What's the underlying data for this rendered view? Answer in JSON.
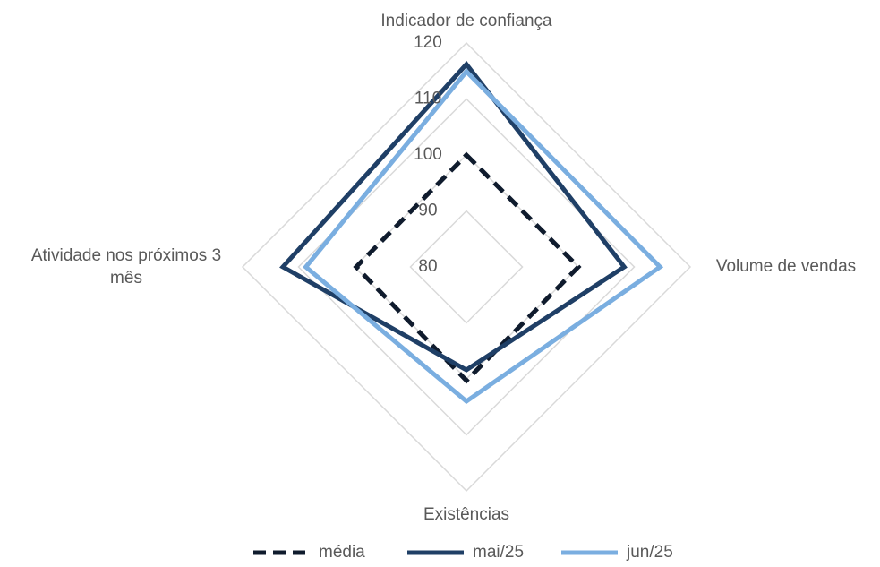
{
  "chart_data": {
    "type": "radar",
    "categories": [
      "Indicador de confiança",
      "Volume de vendas",
      "Existências",
      "Atividade nos próximos 3 mês"
    ],
    "rlim": [
      80,
      120
    ],
    "rticks": [
      80,
      90,
      100,
      110,
      120
    ],
    "grid": true,
    "series": [
      {
        "name": "média",
        "color": "#0f1b2d",
        "dashed": true,
        "values": [
          100,
          100,
          100.3,
          99.7
        ]
      },
      {
        "name": "mai/25",
        "color": "#1f3f66",
        "dashed": false,
        "values": [
          116.2,
          108.2,
          98.4,
          112.8
        ]
      },
      {
        "name": "jun/25",
        "color": "#7aaee0",
        "dashed": false,
        "values": [
          114.9,
          114.6,
          104,
          108.7
        ]
      }
    ],
    "legend": "bottom"
  }
}
